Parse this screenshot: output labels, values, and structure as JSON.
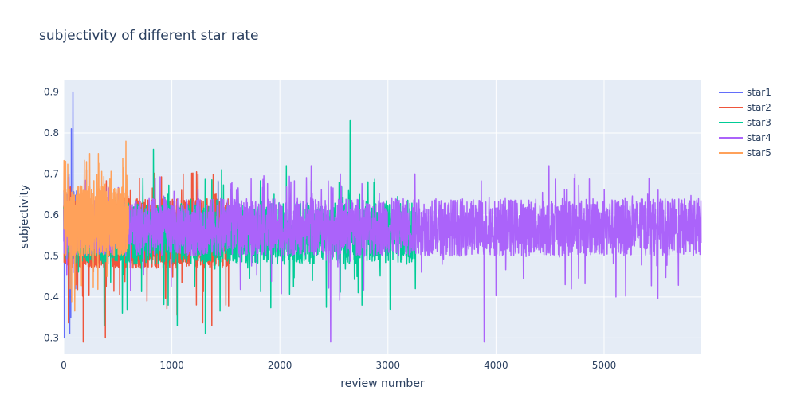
{
  "chart_data": {
    "type": "line",
    "title": "subjectivity of different star rate",
    "xlabel": "review number",
    "ylabel": "subjectivity",
    "xlim": [
      0,
      5900
    ],
    "ylim": [
      0.26,
      0.93
    ],
    "x_ticks": [
      0,
      1000,
      2000,
      3000,
      4000,
      5000
    ],
    "y_ticks": [
      0.3,
      0.4,
      0.5,
      0.6,
      0.7,
      0.8,
      0.9
    ],
    "grid": true,
    "legend_position": "right",
    "series": [
      {
        "name": "star1",
        "color": "#636efa",
        "n_points": 120,
        "typical_range": [
          0.48,
          0.66
        ],
        "peaks": [
          {
            "x": 85,
            "y": 0.9
          },
          {
            "x": 70,
            "y": 0.81
          },
          {
            "x": 48,
            "y": 0.7
          }
        ],
        "troughs": [
          {
            "x": 5,
            "y": 0.3
          },
          {
            "x": 55,
            "y": 0.31
          },
          {
            "x": 65,
            "y": 0.35
          },
          {
            "x": 110,
            "y": 0.42
          }
        ]
      },
      {
        "name": "star2",
        "color": "#EF553B",
        "n_points": 1540,
        "typical_range": [
          0.47,
          0.64
        ],
        "peaks": [
          {
            "x": 210,
            "y": 0.71
          },
          {
            "x": 700,
            "y": 0.69
          },
          {
            "x": 1090,
            "y": 0.66
          },
          {
            "x": 1400,
            "y": 0.65
          }
        ],
        "troughs": [
          {
            "x": 180,
            "y": 0.29
          },
          {
            "x": 385,
            "y": 0.3
          },
          {
            "x": 1370,
            "y": 0.33
          },
          {
            "x": 1500,
            "y": 0.38
          }
        ]
      },
      {
        "name": "star3",
        "color": "#00cc96",
        "n_points": 3260,
        "typical_range": [
          0.48,
          0.63
        ],
        "peaks": [
          {
            "x": 2650,
            "y": 0.83
          },
          {
            "x": 830,
            "y": 0.76
          },
          {
            "x": 1460,
            "y": 0.71
          },
          {
            "x": 2060,
            "y": 0.72
          },
          {
            "x": 2870,
            "y": 0.68
          }
        ],
        "troughs": [
          {
            "x": 1310,
            "y": 0.31
          },
          {
            "x": 1050,
            "y": 0.33
          },
          {
            "x": 375,
            "y": 0.33
          },
          {
            "x": 2760,
            "y": 0.38
          },
          {
            "x": 3020,
            "y": 0.37
          }
        ]
      },
      {
        "name": "star4",
        "color": "#ab63fa",
        "n_points": 5900,
        "typical_range": [
          0.5,
          0.64
        ],
        "peaks": [
          {
            "x": 2290,
            "y": 0.72
          },
          {
            "x": 4490,
            "y": 0.72
          },
          {
            "x": 4730,
            "y": 0.7
          },
          {
            "x": 2560,
            "y": 0.7
          },
          {
            "x": 3250,
            "y": 0.7
          }
        ],
        "troughs": [
          {
            "x": 2470,
            "y": 0.29
          },
          {
            "x": 3890,
            "y": 0.29
          },
          {
            "x": 5110,
            "y": 0.4
          },
          {
            "x": 4640,
            "y": 0.43
          }
        ]
      },
      {
        "name": "star5",
        "color": "#FFA15A",
        "n_points": 600,
        "typical_range": [
          0.5,
          0.67
        ],
        "peaks": [
          {
            "x": 575,
            "y": 0.78
          },
          {
            "x": 240,
            "y": 0.75
          },
          {
            "x": 320,
            "y": 0.75
          },
          {
            "x": 210,
            "y": 0.73
          }
        ],
        "troughs": [
          {
            "x": 60,
            "y": 0.42
          },
          {
            "x": 400,
            "y": 0.45
          }
        ]
      }
    ]
  }
}
